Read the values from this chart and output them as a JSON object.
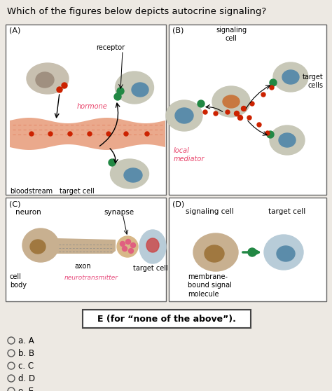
{
  "title": "Which of the figures below depicts autocrine signaling?",
  "title_fontsize": 9.5,
  "bg_color": "#ede9e3",
  "panel_bg": "#ffffff",
  "choices": [
    "a. A",
    "b. B",
    "c. C",
    "d. D",
    "e. E"
  ],
  "box_e_text": "E (for “none of the above”).",
  "panel_A_label": "(A)",
  "panel_B_label": "(B)",
  "panel_C_label": "(C)",
  "panel_D_label": "(D)",
  "hormone_color": "#e8436a",
  "cell_body_color": "#c8b898",
  "cell_nucleus_color": "#a08060",
  "blue_cell_color": "#b8ccd8",
  "blue_nucleus_color": "#5b8caa",
  "orange_nucleus_color": "#c87840",
  "bloodstream_color": "#e8a080",
  "red_dot_color": "#cc2200",
  "green_dot_color": "#228844",
  "arrow_color": "#222222",
  "neurotransmitter_color": "#e85080"
}
